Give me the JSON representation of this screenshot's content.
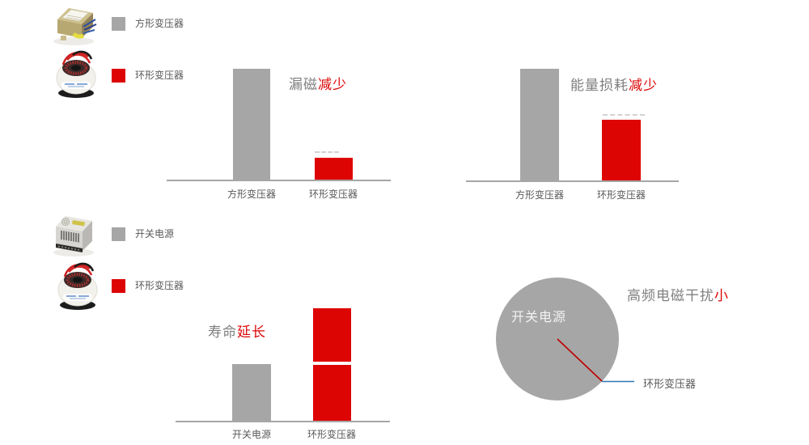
{
  "colors": {
    "bar_gray": "#a6a6a6",
    "bar_red": "#dd0404",
    "title_gray": "#7f7f7f",
    "label_gray": "#595959",
    "axis_gray": "#a6a6a6",
    "leader_blue": "#2e75b6",
    "pie_inside_label_white": "#f2f2f2",
    "background": "#ffffff"
  },
  "legend_top": {
    "items": [
      {
        "icon": "square-transformer-photo",
        "swatch_color": "#a6a6a6",
        "label": "方形变压器"
      },
      {
        "icon": "toroidal-transformer-photo",
        "swatch_color": "#dd0404",
        "label": "环形变压器"
      }
    ]
  },
  "legend_bottom": {
    "items": [
      {
        "icon": "switching-power-supply-photo",
        "swatch_color": "#a6a6a6",
        "label": "开关电源"
      },
      {
        "icon": "toroidal-transformer-photo",
        "swatch_color": "#dd0404",
        "label": "环形变压器"
      }
    ]
  },
  "chart_data": [
    {
      "type": "bar",
      "title": "漏磁减少",
      "title_plain": "漏磁",
      "title_accent": "减少",
      "categories": [
        "方形变压器",
        "环形变压器"
      ],
      "values": [
        100,
        20
      ],
      "colors": [
        "#a6a6a6",
        "#dd0404"
      ],
      "ylim": [
        0,
        100
      ],
      "unit": "relative (gray bar = 100)",
      "grid": false,
      "legend_position": "page-top-left"
    },
    {
      "type": "bar",
      "title": "能量损耗减少",
      "title_plain": "能量损耗",
      "title_accent": "减少",
      "categories": [
        "方形变压器",
        "环形变压器"
      ],
      "values": [
        100,
        54
      ],
      "colors": [
        "#a6a6a6",
        "#dd0404"
      ],
      "ylim": [
        0,
        100
      ],
      "unit": "relative (gray bar = 100)",
      "grid": false,
      "legend_position": "page-top-left"
    },
    {
      "type": "bar",
      "title": "寿命延长",
      "title_plain": "寿命",
      "title_accent": "延长",
      "categories": [
        "开关电源",
        "环形变压器"
      ],
      "values": [
        50,
        100
      ],
      "colors": [
        "#a6a6a6",
        "#dd0404"
      ],
      "red_bar_segments": [
        47,
        50
      ],
      "segmented_red_bar": true,
      "ylim": [
        0,
        100
      ],
      "unit": "relative (red bar = 100)",
      "grid": false,
      "legend_position": "page-bottom-left"
    },
    {
      "type": "pie",
      "title": "高频电磁干扰小",
      "title_plain": "高频电磁干扰",
      "title_accent": "小",
      "slices": [
        {
          "label": "开关电源",
          "value": 99,
          "color": "#a6a6a6",
          "label_position": "inside"
        },
        {
          "label": "环形变压器",
          "value": 1,
          "color": "#dd0404",
          "label_position": "outside-right-leader"
        }
      ],
      "legend_position": "none"
    }
  ]
}
